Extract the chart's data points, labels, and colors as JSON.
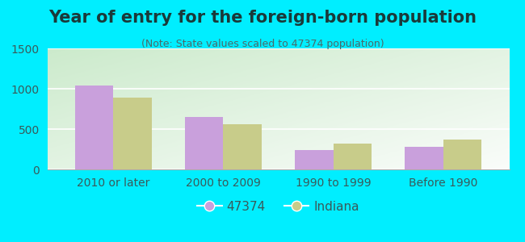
{
  "title": "Year of entry for the foreign-born population",
  "subtitle": "(Note: State values scaled to 47374 population)",
  "categories": [
    "2010 or later",
    "2000 to 2009",
    "1990 to 1999",
    "Before 1990"
  ],
  "values_47374": [
    1040,
    648,
    238,
    278
  ],
  "values_indiana": [
    893,
    558,
    318,
    375
  ],
  "bar_color_47374": "#c9a0dc",
  "bar_color_indiana": "#c8cc8a",
  "background_outer": "#00eeff",
  "background_inner_bottom_left": "#c8e6c0",
  "background_inner_top_right": "#f8fff8",
  "ylim": [
    0,
    1500
  ],
  "yticks": [
    0,
    500,
    1000,
    1500
  ],
  "legend_label_1": "47374",
  "legend_label_2": "Indiana",
  "bar_width": 0.35,
  "title_fontsize": 15,
  "subtitle_fontsize": 9,
  "axis_fontsize": 10,
  "title_color": "#1a3a3a",
  "subtitle_color": "#4a6a6a",
  "tick_color": "#3a5a5a"
}
